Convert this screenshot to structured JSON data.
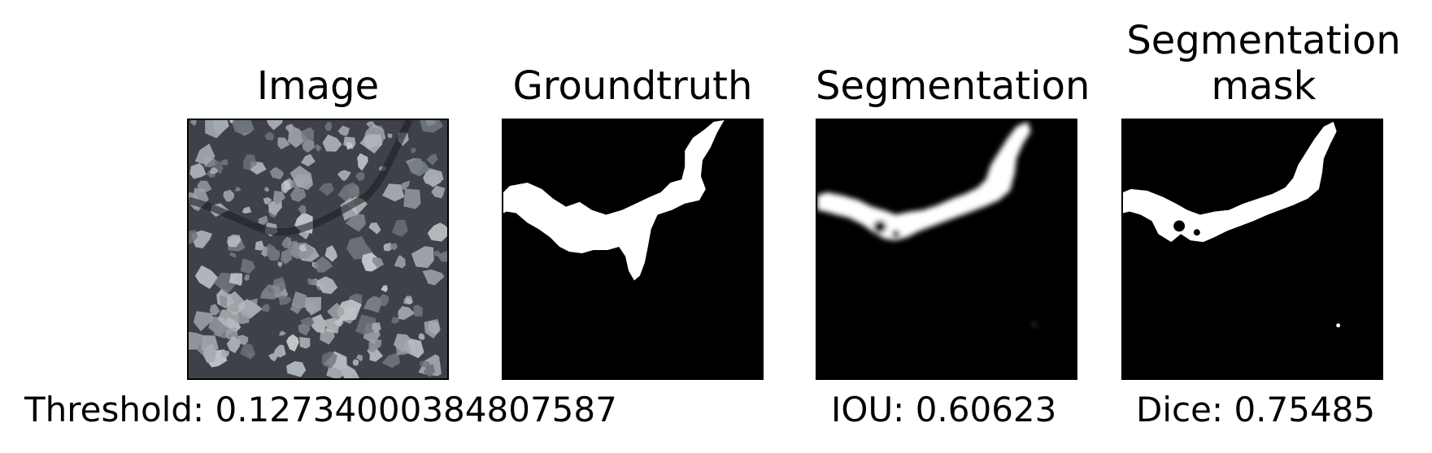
{
  "panels": [
    {
      "title": "Image"
    },
    {
      "title": "Groundtruth"
    },
    {
      "title": "Segmentation"
    },
    {
      "title": "Segmentation\nmask"
    }
  ],
  "metrics": {
    "threshold": "Threshold: 0.12734000384807587",
    "iou": "IOU: 0.60623",
    "dice": "Dice: 0.75485"
  },
  "colors": {
    "background": "#ffffff",
    "mask_fg": "#ffffff",
    "mask_bg": "#000000",
    "stone_dark": "#3b3f45",
    "stone_light": "#a9adb3"
  }
}
